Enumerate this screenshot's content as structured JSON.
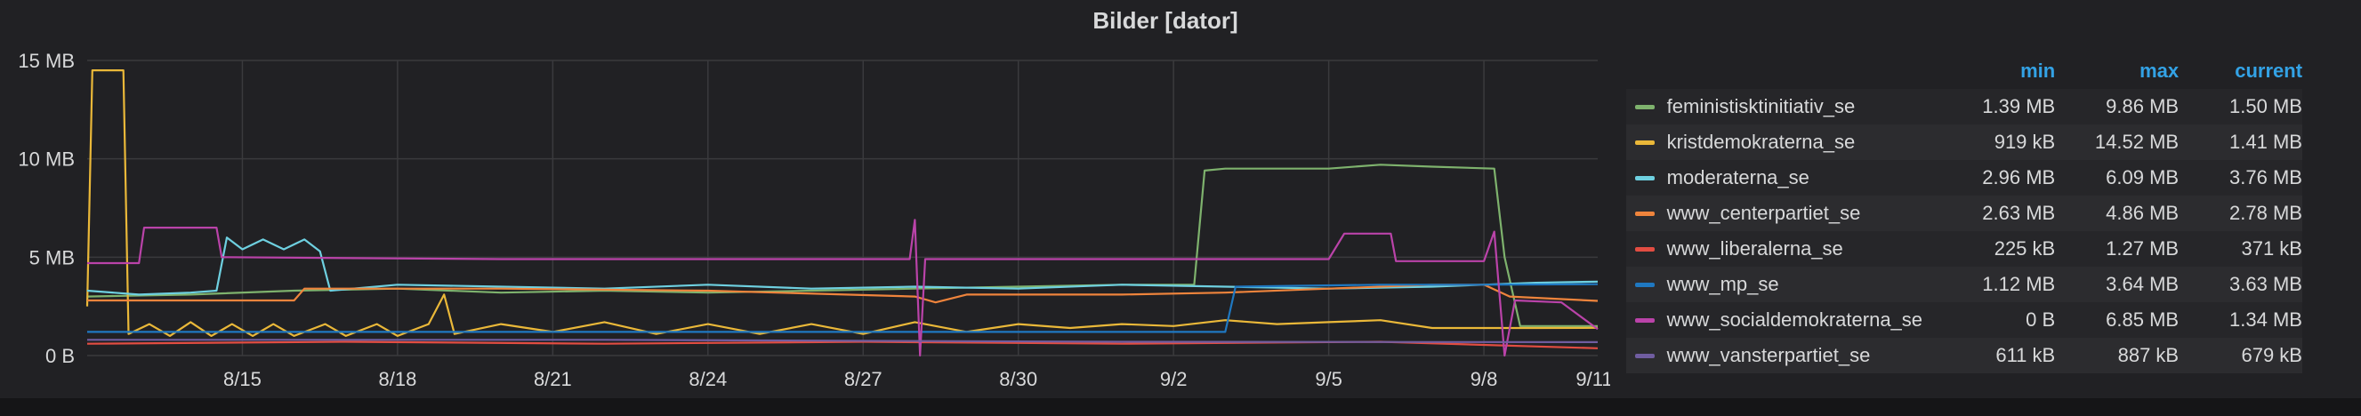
{
  "panel": {
    "title": "Bilder [dator]"
  },
  "legend": {
    "headers": {
      "min": "min",
      "max": "max",
      "current": "current"
    },
    "rows": [
      {
        "name": "feministisktinitiativ_se",
        "color": "#7eb26d",
        "min": "1.39 MB",
        "max": "9.86 MB",
        "current": "1.50 MB"
      },
      {
        "name": "kristdemokraterna_se",
        "color": "#eab839",
        "min": "919 kB",
        "max": "14.52 MB",
        "current": "1.41 MB"
      },
      {
        "name": "moderaterna_se",
        "color": "#6ed0e0",
        "min": "2.96 MB",
        "max": "6.09 MB",
        "current": "3.76 MB"
      },
      {
        "name": "www_centerpartiet_se",
        "color": "#ef843c",
        "min": "2.63 MB",
        "max": "4.86 MB",
        "current": "2.78 MB"
      },
      {
        "name": "www_liberalerna_se",
        "color": "#e24d42",
        "min": "225 kB",
        "max": "1.27 MB",
        "current": "371 kB"
      },
      {
        "name": "www_mp_se",
        "color": "#1f78c1",
        "min": "1.12 MB",
        "max": "3.64 MB",
        "current": "3.63 MB"
      },
      {
        "name": "www_socialdemokraterna_se",
        "color": "#ba43a9",
        "min": "0 B",
        "max": "6.85 MB",
        "current": "1.34 MB"
      },
      {
        "name": "www_vansterpartiet_se",
        "color": "#705da0",
        "min": "611 kB",
        "max": "887 kB",
        "current": "679 kB"
      }
    ]
  },
  "chart_data": {
    "type": "line",
    "title": "Bilder [dator]",
    "x_unit": "days since 2018-08-12",
    "xlim": [
      0.0,
      29.2
    ],
    "ylim": [
      0,
      15
    ],
    "y_tick_values": [
      0,
      5,
      10,
      15
    ],
    "y_tick_labels": [
      "0 B",
      "5 MB",
      "10 MB",
      "15 MB"
    ],
    "x_tick_values": [
      3,
      6,
      9,
      12,
      15,
      18,
      21,
      24,
      27,
      30
    ],
    "x_tick_labels": [
      "8/15",
      "8/18",
      "8/21",
      "8/24",
      "8/27",
      "8/30",
      "9/2",
      "9/5",
      "9/8",
      "9/11"
    ],
    "grid": true,
    "legend_position": "right",
    "series": [
      {
        "name": "feministisktinitiativ_se",
        "color": "#7eb26d",
        "points": [
          [
            0,
            3.0
          ],
          [
            2,
            3.1
          ],
          [
            4,
            3.3
          ],
          [
            6,
            3.4
          ],
          [
            8,
            3.2
          ],
          [
            10,
            3.3
          ],
          [
            12,
            3.2
          ],
          [
            14,
            3.3
          ],
          [
            16,
            3.4
          ],
          [
            18,
            3.5
          ],
          [
            20,
            3.6
          ],
          [
            21.4,
            3.6
          ],
          [
            21.6,
            9.4
          ],
          [
            22,
            9.5
          ],
          [
            24,
            9.5
          ],
          [
            25,
            9.7
          ],
          [
            26,
            9.6
          ],
          [
            27.2,
            9.5
          ],
          [
            27.4,
            5.0
          ],
          [
            27.7,
            1.5
          ],
          [
            29.2,
            1.5
          ]
        ]
      },
      {
        "name": "kristdemokraterna_se",
        "color": "#eab839",
        "points": [
          [
            0,
            2.5
          ],
          [
            0.1,
            14.5
          ],
          [
            0.7,
            14.5
          ],
          [
            0.8,
            1.1
          ],
          [
            1.2,
            1.6
          ],
          [
            1.6,
            1.0
          ],
          [
            2,
            1.7
          ],
          [
            2.4,
            1.0
          ],
          [
            2.8,
            1.6
          ],
          [
            3.2,
            1.0
          ],
          [
            3.6,
            1.6
          ],
          [
            4,
            1.0
          ],
          [
            4.6,
            1.6
          ],
          [
            5,
            1.0
          ],
          [
            5.6,
            1.6
          ],
          [
            6,
            1.0
          ],
          [
            6.6,
            1.6
          ],
          [
            6.9,
            3.1
          ],
          [
            7.1,
            1.1
          ],
          [
            8,
            1.6
          ],
          [
            9,
            1.2
          ],
          [
            10,
            1.7
          ],
          [
            11,
            1.1
          ],
          [
            12,
            1.6
          ],
          [
            13,
            1.1
          ],
          [
            14,
            1.6
          ],
          [
            15,
            1.1
          ],
          [
            16,
            1.7
          ],
          [
            17,
            1.2
          ],
          [
            18,
            1.6
          ],
          [
            19,
            1.4
          ],
          [
            20,
            1.6
          ],
          [
            21,
            1.5
          ],
          [
            22,
            1.8
          ],
          [
            23,
            1.6
          ],
          [
            24,
            1.7
          ],
          [
            25,
            1.8
          ],
          [
            26,
            1.4
          ],
          [
            27,
            1.4
          ],
          [
            28,
            1.4
          ],
          [
            29.2,
            1.41
          ]
        ]
      },
      {
        "name": "moderaterna_se",
        "color": "#6ed0e0",
        "points": [
          [
            0,
            3.3
          ],
          [
            1,
            3.1
          ],
          [
            2,
            3.2
          ],
          [
            2.5,
            3.3
          ],
          [
            2.7,
            6.0
          ],
          [
            3,
            5.4
          ],
          [
            3.4,
            5.9
          ],
          [
            3.8,
            5.4
          ],
          [
            4.2,
            5.9
          ],
          [
            4.5,
            5.3
          ],
          [
            4.7,
            3.3
          ],
          [
            6,
            3.6
          ],
          [
            8,
            3.5
          ],
          [
            10,
            3.4
          ],
          [
            12,
            3.6
          ],
          [
            14,
            3.4
          ],
          [
            16,
            3.5
          ],
          [
            18,
            3.4
          ],
          [
            20,
            3.6
          ],
          [
            22,
            3.5
          ],
          [
            24,
            3.4
          ],
          [
            26,
            3.5
          ],
          [
            28,
            3.7
          ],
          [
            29.2,
            3.76
          ]
        ]
      },
      {
        "name": "www_centerpartiet_se",
        "color": "#ef843c",
        "points": [
          [
            0,
            2.8
          ],
          [
            4,
            2.8
          ],
          [
            4.2,
            3.4
          ],
          [
            8,
            3.4
          ],
          [
            12,
            3.3
          ],
          [
            16,
            3.0
          ],
          [
            16.4,
            2.7
          ],
          [
            17,
            3.1
          ],
          [
            20,
            3.1
          ],
          [
            22,
            3.2
          ],
          [
            24,
            3.4
          ],
          [
            26,
            3.6
          ],
          [
            27,
            3.6
          ],
          [
            27.5,
            3.0
          ],
          [
            29.2,
            2.78
          ]
        ]
      },
      {
        "name": "www_liberalerna_se",
        "color": "#e24d42",
        "points": [
          [
            0,
            0.6
          ],
          [
            5,
            0.7
          ],
          [
            10,
            0.6
          ],
          [
            15,
            0.7
          ],
          [
            20,
            0.6
          ],
          [
            25,
            0.7
          ],
          [
            29.2,
            0.37
          ]
        ]
      },
      {
        "name": "www_mp_se",
        "color": "#1f78c1",
        "points": [
          [
            0,
            1.2
          ],
          [
            5,
            1.2
          ],
          [
            10,
            1.2
          ],
          [
            15,
            1.2
          ],
          [
            20,
            1.2
          ],
          [
            22.0,
            1.2
          ],
          [
            22.2,
            3.5
          ],
          [
            25,
            3.6
          ],
          [
            27,
            3.6
          ],
          [
            29.2,
            3.63
          ]
        ]
      },
      {
        "name": "www_socialdemokraterna_se",
        "color": "#ba43a9",
        "points": [
          [
            0,
            4.7
          ],
          [
            1,
            4.7
          ],
          [
            1.1,
            6.5
          ],
          [
            2.5,
            6.5
          ],
          [
            2.6,
            5.0
          ],
          [
            8,
            4.9
          ],
          [
            14,
            4.9
          ],
          [
            15.9,
            4.9
          ],
          [
            16,
            6.9
          ],
          [
            16.1,
            0
          ],
          [
            16.2,
            4.9
          ],
          [
            24,
            4.9
          ],
          [
            24.3,
            6.2
          ],
          [
            25.2,
            6.2
          ],
          [
            25.3,
            4.8
          ],
          [
            27,
            4.8
          ],
          [
            27.2,
            6.3
          ],
          [
            27.4,
            0
          ],
          [
            27.6,
            2.8
          ],
          [
            28.5,
            2.7
          ],
          [
            29.2,
            1.34
          ]
        ]
      },
      {
        "name": "www_vansterpartiet_se",
        "color": "#705da0",
        "points": [
          [
            0,
            0.8
          ],
          [
            10,
            0.8
          ],
          [
            20,
            0.7
          ],
          [
            29.2,
            0.68
          ]
        ]
      }
    ]
  }
}
